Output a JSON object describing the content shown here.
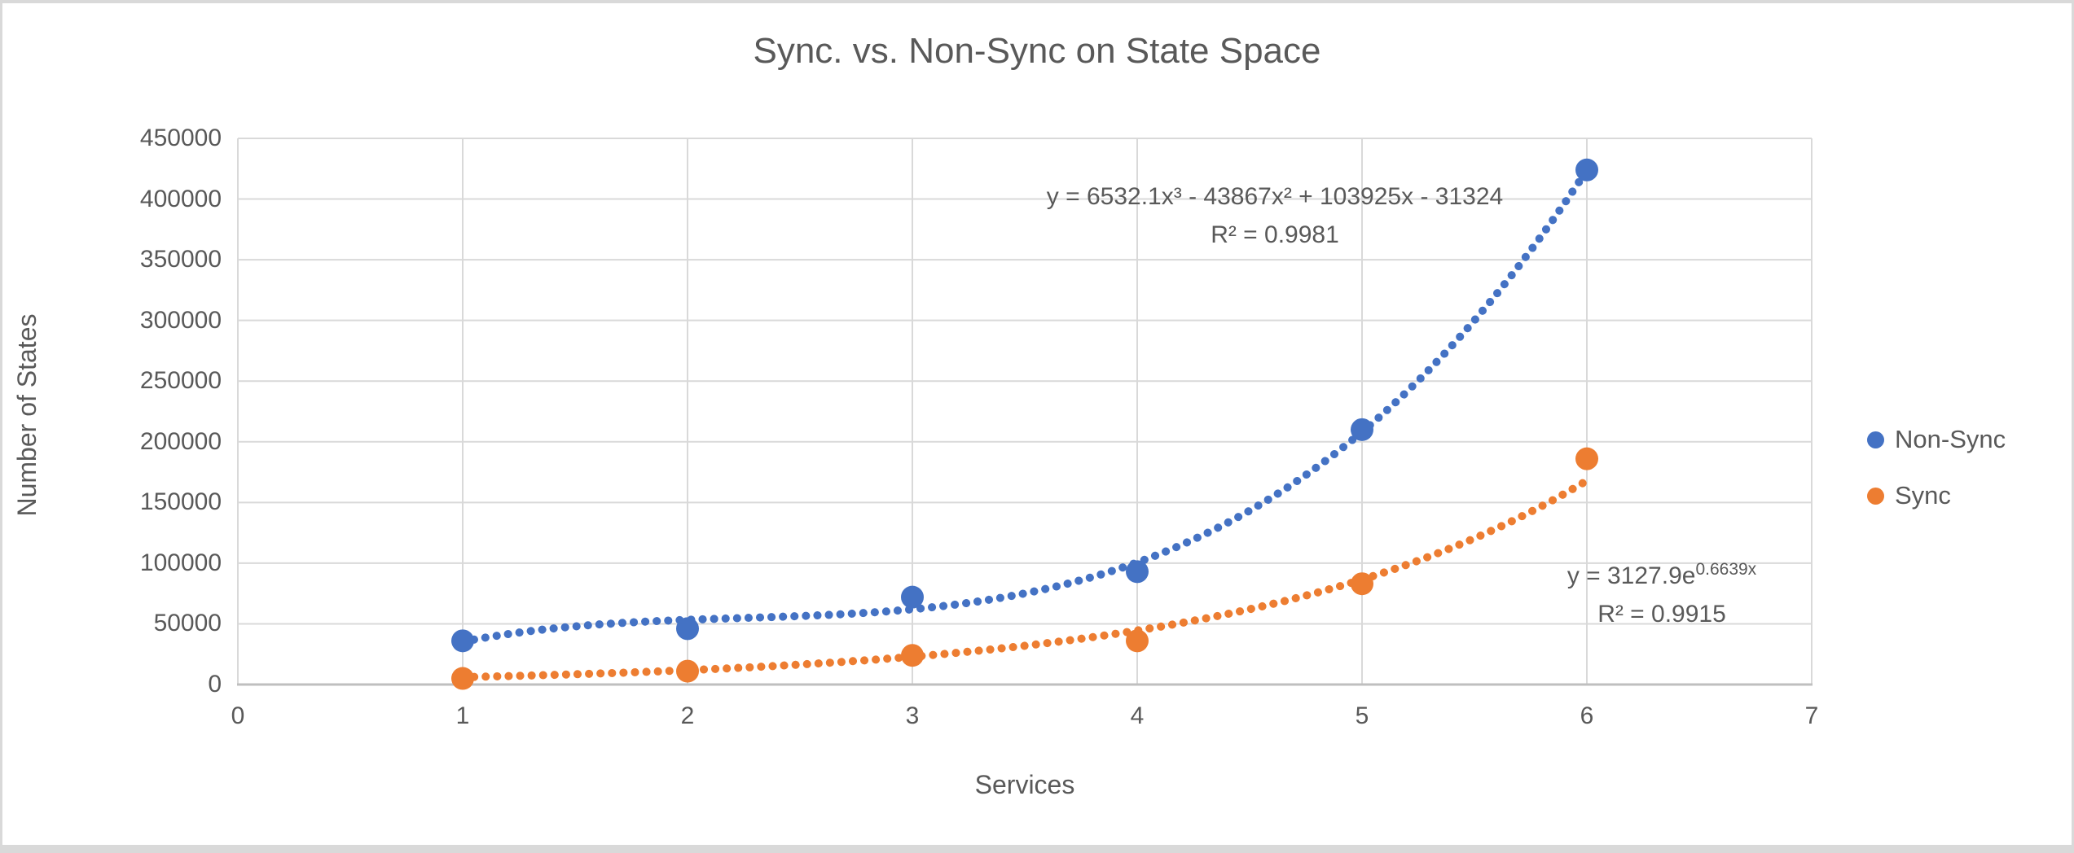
{
  "chart_data": {
    "type": "scatter",
    "title": "Sync. vs. Non-Sync on State Space",
    "xlabel": "Services",
    "ylabel": "Number of States",
    "xlim": [
      0,
      7
    ],
    "ylim": [
      0,
      450000
    ],
    "x_ticks": [
      0,
      1,
      2,
      3,
      4,
      5,
      6,
      7
    ],
    "y_ticks": [
      0,
      50000,
      100000,
      150000,
      200000,
      250000,
      300000,
      350000,
      400000,
      450000
    ],
    "grid": true,
    "legend_position": "right",
    "x": [
      1,
      2,
      3,
      4,
      5,
      6
    ],
    "series": [
      {
        "name": "Non-Sync",
        "color": "#4472C4",
        "marker": "circle",
        "values": [
          36000,
          46000,
          72000,
          93000,
          210000,
          424000
        ],
        "trendline": {
          "type": "polynomial_cubic",
          "style": "dotted",
          "coefficients": [
            6532.1,
            -43867,
            103925,
            -31324
          ],
          "range": [
            1,
            6
          ],
          "equation": "y = 6532.1x³ - 43867x² + 103925x - 31324",
          "r2": "R² = 0.9981"
        }
      },
      {
        "name": "Sync",
        "color": "#ED7D31",
        "marker": "circle",
        "values": [
          5000,
          11000,
          24000,
          36000,
          83000,
          186000
        ],
        "trendline": {
          "type": "exponential",
          "style": "dotted",
          "a": 3127.9,
          "b": 0.6639,
          "range": [
            1,
            6
          ],
          "equation_base": "y = 3127.9e",
          "equation_exponent": "0.6639x",
          "r2": "R² = 0.9915"
        }
      }
    ],
    "colors": {
      "text": "#595959",
      "gridline": "#D9D9D9",
      "axis_line": "#BFBFBF",
      "background": "#FFFFFF",
      "border": "#D9D9D9"
    }
  }
}
